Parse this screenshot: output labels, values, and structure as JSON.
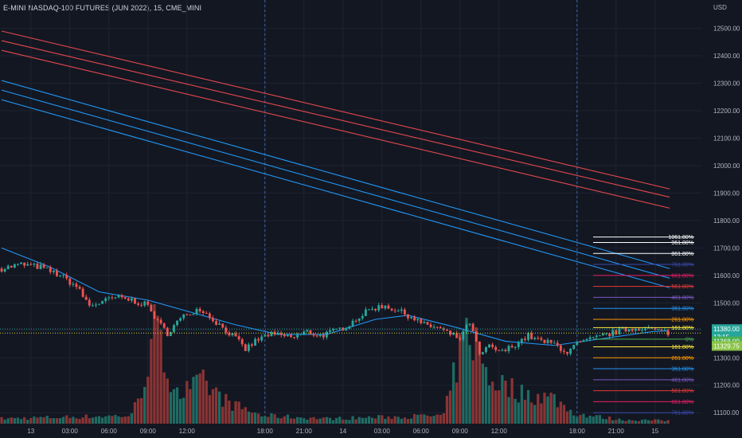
{
  "title": "E-MINI NASDAQ-100 FUTURES (JUN 2022), 15, CME_MINI",
  "colors": {
    "background": "#131722",
    "grid": "#1f2330",
    "axis_text": "#b2b5be",
    "up": "#26a69a",
    "down": "#ef5350",
    "up_volume": "#1f6b63",
    "down_volume": "#8a3434",
    "red_band": "#e5484d",
    "blue_band": "#2196f3",
    "session_line": "#3a7bd5"
  },
  "chart_data": {
    "type": "candlestick",
    "currency": "USD",
    "y_axis": {
      "min": 11060,
      "max": 12580,
      "ticks": [
        12500,
        12400,
        12300,
        12200,
        12100,
        12000,
        11900,
        11800,
        11700,
        11600,
        11500,
        11400,
        11300,
        11200,
        11100
      ],
      "tick_labels": [
        "12500.00",
        "12400.00",
        "12300.00",
        "12200.00",
        "12100.00",
        "12000.00",
        "11900.00",
        "11800.00",
        "11700.00",
        "11600.00",
        "11500.00",
        "11400.00",
        "11300.00",
        "11200.00",
        "11100.00"
      ]
    },
    "x_axis": {
      "bar_count": 216,
      "ticks": [
        {
          "label": "13",
          "bar": 9
        },
        {
          "label": "03:00",
          "bar": 21
        },
        {
          "label": "06:00",
          "bar": 33
        },
        {
          "label": "09:00",
          "bar": 45
        },
        {
          "label": "12:00",
          "bar": 57
        },
        {
          "label": "18:00",
          "bar": 81
        },
        {
          "label": "21:00",
          "bar": 93
        },
        {
          "label": "14",
          "bar": 105
        },
        {
          "label": "03:00",
          "bar": 117
        },
        {
          "label": "06:00",
          "bar": 129
        },
        {
          "label": "09:00",
          "bar": 141
        },
        {
          "label": "12:00",
          "bar": 153
        },
        {
          "label": "18:00",
          "bar": 177
        },
        {
          "label": "21:00",
          "bar": 189
        },
        {
          "label": "15",
          "bar": 201
        }
      ],
      "session_dividers": [
        81,
        177
      ]
    },
    "price_path": [
      {
        "bar": 0,
        "price": 11625
      },
      {
        "bar": 6,
        "price": 11640
      },
      {
        "bar": 12,
        "price": 11630
      },
      {
        "bar": 18,
        "price": 11600
      },
      {
        "bar": 23,
        "price": 11560
      },
      {
        "bar": 27,
        "price": 11490
      },
      {
        "bar": 30,
        "price": 11500
      },
      {
        "bar": 35,
        "price": 11520
      },
      {
        "bar": 40,
        "price": 11510
      },
      {
        "bar": 45,
        "price": 11490
      },
      {
        "bar": 48,
        "price": 11430
      },
      {
        "bar": 51,
        "price": 11390
      },
      {
        "bar": 54,
        "price": 11430
      },
      {
        "bar": 57,
        "price": 11460
      },
      {
        "bar": 61,
        "price": 11480
      },
      {
        "bar": 65,
        "price": 11440
      },
      {
        "bar": 69,
        "price": 11400
      },
      {
        "bar": 72,
        "price": 11370
      },
      {
        "bar": 75,
        "price": 11330
      },
      {
        "bar": 78,
        "price": 11360
      },
      {
        "bar": 82,
        "price": 11385
      },
      {
        "bar": 86,
        "price": 11380
      },
      {
        "bar": 90,
        "price": 11375
      },
      {
        "bar": 94,
        "price": 11395
      },
      {
        "bar": 98,
        "price": 11380
      },
      {
        "bar": 102,
        "price": 11395
      },
      {
        "bar": 106,
        "price": 11415
      },
      {
        "bar": 110,
        "price": 11450
      },
      {
        "bar": 114,
        "price": 11480
      },
      {
        "bar": 118,
        "price": 11490
      },
      {
        "bar": 122,
        "price": 11470
      },
      {
        "bar": 126,
        "price": 11450
      },
      {
        "bar": 130,
        "price": 11420
      },
      {
        "bar": 134,
        "price": 11410
      },
      {
        "bar": 138,
        "price": 11385
      },
      {
        "bar": 141,
        "price": 11370
      },
      {
        "bar": 144,
        "price": 11430
      },
      {
        "bar": 147,
        "price": 11310
      },
      {
        "bar": 150,
        "price": 11340
      },
      {
        "bar": 154,
        "price": 11320
      },
      {
        "bar": 158,
        "price": 11350
      },
      {
        "bar": 162,
        "price": 11380
      },
      {
        "bar": 166,
        "price": 11360
      },
      {
        "bar": 170,
        "price": 11350
      },
      {
        "bar": 174,
        "price": 11320
      },
      {
        "bar": 177,
        "price": 11350
      },
      {
        "bar": 181,
        "price": 11365
      },
      {
        "bar": 185,
        "price": 11380
      },
      {
        "bar": 189,
        "price": 11395
      },
      {
        "bar": 193,
        "price": 11405
      },
      {
        "bar": 197,
        "price": 11410
      },
      {
        "bar": 201,
        "price": 11400
      },
      {
        "bar": 205,
        "price": 11392
      }
    ],
    "volume_path": [
      {
        "bar": 0,
        "volume": 0.05
      },
      {
        "bar": 40,
        "volume": 0.08
      },
      {
        "bar": 44,
        "volume": 0.45
      },
      {
        "bar": 47,
        "volume": 0.95
      },
      {
        "bar": 50,
        "volume": 0.6
      },
      {
        "bar": 55,
        "volume": 0.3
      },
      {
        "bar": 62,
        "volume": 0.4
      },
      {
        "bar": 70,
        "volume": 0.2
      },
      {
        "bar": 80,
        "volume": 0.08
      },
      {
        "bar": 100,
        "volume": 0.05
      },
      {
        "bar": 136,
        "volume": 0.08
      },
      {
        "bar": 141,
        "volume": 0.7
      },
      {
        "bar": 144,
        "volume": 0.95
      },
      {
        "bar": 150,
        "volume": 0.45
      },
      {
        "bar": 160,
        "volume": 0.3
      },
      {
        "bar": 170,
        "volume": 0.25
      },
      {
        "bar": 176,
        "volume": 0.1
      },
      {
        "bar": 190,
        "volume": 0.04
      },
      {
        "bar": 205,
        "volume": 0.03
      }
    ],
    "bands": [
      {
        "color": "red_band",
        "start_bar": 0,
        "start": 12490,
        "end": 11915
      },
      {
        "color": "red_band",
        "start_bar": 0,
        "start": 12455,
        "end": 11885
      },
      {
        "color": "red_band",
        "start_bar": 0,
        "start": 12420,
        "end": 11845
      },
      {
        "color": "blue_band",
        "start_bar": 0,
        "start": 12310,
        "end": 11625
      },
      {
        "color": "blue_band",
        "start_bar": 0,
        "start": 12275,
        "end": 11590
      },
      {
        "color": "blue_band",
        "start_bar": 0,
        "start": 12240,
        "end": 11555
      }
    ],
    "moving_average": [
      {
        "bar": 0,
        "price": 11700
      },
      {
        "bar": 15,
        "price": 11630
      },
      {
        "bar": 30,
        "price": 11540
      },
      {
        "bar": 45,
        "price": 11510
      },
      {
        "bar": 60,
        "price": 11460
      },
      {
        "bar": 72,
        "price": 11420
      },
      {
        "bar": 85,
        "price": 11385
      },
      {
        "bar": 100,
        "price": 11385
      },
      {
        "bar": 115,
        "price": 11440
      },
      {
        "bar": 125,
        "price": 11455
      },
      {
        "bar": 140,
        "price": 11410
      },
      {
        "bar": 155,
        "price": 11360
      },
      {
        "bar": 170,
        "price": 11345
      },
      {
        "bar": 185,
        "price": 11370
      },
      {
        "bar": 200,
        "price": 11395
      },
      {
        "bar": 205,
        "price": 11398
      }
    ],
    "fib_levels": {
      "upper": [
        {
          "label": "1061.80%",
          "price": 11740,
          "color": "#ffffff"
        },
        {
          "label": "961.80%",
          "price": 11720,
          "color": "#ffffff"
        },
        {
          "label": "861.80%",
          "price": 11680,
          "color": "#ffffff"
        },
        {
          "label": "761.80%",
          "price": 11640,
          "color": "#3a4ab0"
        },
        {
          "label": "661.80%",
          "price": 11600,
          "color": "#e91e63"
        },
        {
          "label": "561.80%",
          "price": 11560,
          "color": "#e53935"
        },
        {
          "label": "461.80%",
          "price": 11520,
          "color": "#7e57c2"
        },
        {
          "label": "361.80%",
          "price": 11480,
          "color": "#2196f3"
        },
        {
          "label": "261.80%",
          "price": 11440,
          "color": "#ff9800"
        },
        {
          "label": "161.80%",
          "price": 11410,
          "color": "#ffeb3b"
        }
      ],
      "lower": [
        {
          "label": "0%",
          "price": 11368,
          "color": "#4caf50"
        },
        {
          "label": "161.80%",
          "price": 11340,
          "color": "#ffeb3b"
        },
        {
          "label": "261.80%",
          "price": 11300,
          "color": "#ff9800"
        },
        {
          "label": "361.80%",
          "price": 11260,
          "color": "#2196f3"
        },
        {
          "label": "461.80%",
          "price": 11220,
          "color": "#7e57c2"
        },
        {
          "label": "561.80%",
          "price": 11180,
          "color": "#e53935"
        },
        {
          "label": "661.80%",
          "price": 11140,
          "color": "#e91e63"
        },
        {
          "label": "761.80%",
          "price": 11100,
          "color": "#3a4ab0"
        }
      ]
    },
    "dotted_levels": [
      {
        "price": 11405,
        "color": "#26a69a"
      },
      {
        "price": 11390,
        "color": "#cddc39"
      }
    ],
    "price_tags": [
      {
        "lines": [
          "11380.00",
          "13:15"
        ],
        "price": 11390,
        "bg": "#26a69a",
        "fg": "#ffffff"
      },
      {
        "lines": [
          "11368.00"
        ],
        "price": 11360,
        "bg": "#4caf50",
        "fg": "#ffffff"
      },
      {
        "lines": [
          "11329.75"
        ],
        "price": 11343,
        "bg": "#8bc34a",
        "fg": "#ffffff"
      }
    ]
  }
}
